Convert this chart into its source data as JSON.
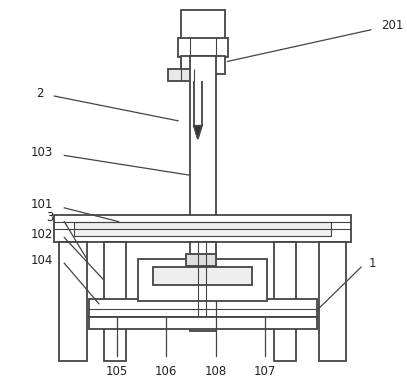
{
  "bg_color": "#ffffff",
  "line_color": "#444444",
  "line_width": 1.3,
  "thin_lw": 0.8,
  "annot_lw": 0.9,
  "font_size": 8.5,
  "label_color": "#222222"
}
